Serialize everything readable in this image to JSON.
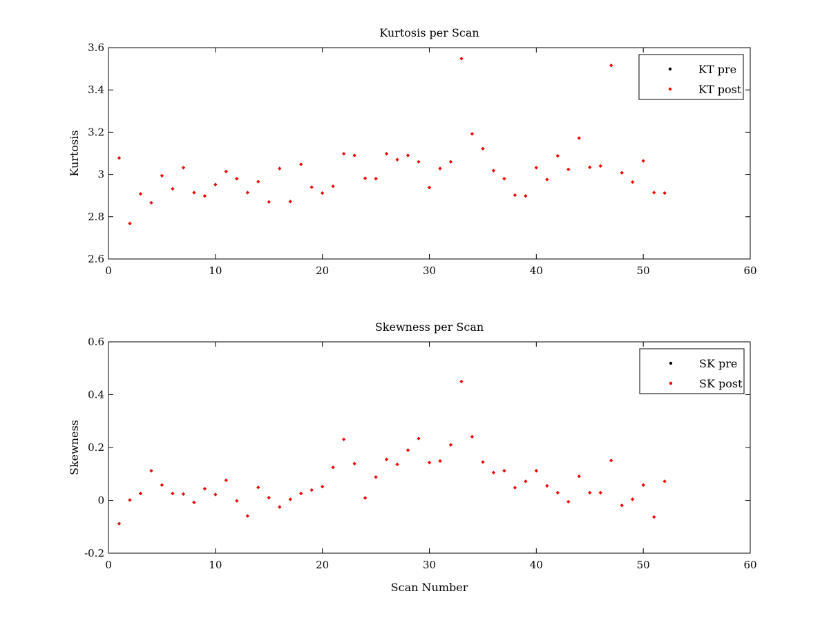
{
  "chart_data": [
    {
      "type": "scatter",
      "title": "Kurtosis per Scan",
      "xlabel": "",
      "ylabel": "Kurtosis",
      "xlim": [
        0,
        60
      ],
      "ylim": [
        2.6,
        3.6
      ],
      "xticks": [
        0,
        10,
        20,
        30,
        40,
        50,
        60
      ],
      "yticks": [
        2.6,
        2.8,
        3,
        3.2,
        3.4,
        3.6
      ],
      "xtick_labels": [
        "0",
        "10",
        "20",
        "30",
        "40",
        "50",
        "60"
      ],
      "ytick_labels": [
        "2.6",
        "2.8",
        "3",
        "3.2",
        "3.4",
        "3.6"
      ],
      "grid": false,
      "legend_position": "top-right",
      "legend": [
        "KT pre",
        "KT post"
      ],
      "series": [
        {
          "name": "KT pre",
          "color": "#000000",
          "x": [
            1,
            2,
            3,
            4,
            5,
            6,
            7,
            8,
            9,
            10,
            11,
            12,
            13,
            14,
            15,
            16,
            17,
            18,
            19,
            20,
            21,
            22,
            23,
            24,
            25,
            26,
            27,
            28,
            29,
            30,
            31,
            32,
            33,
            34,
            35,
            36,
            37,
            38,
            39,
            40,
            41,
            42,
            43,
            44,
            45,
            46,
            47,
            48,
            49,
            50,
            51,
            52
          ],
          "values": [
            3.078,
            2.768,
            2.908,
            2.866,
            2.994,
            2.932,
            3.032,
            2.914,
            2.898,
            2.952,
            3.014,
            2.98,
            2.914,
            2.966,
            2.87,
            3.028,
            2.872,
            3.048,
            2.94,
            2.912,
            2.944,
            3.098,
            3.09,
            2.982,
            2.98,
            3.098,
            3.07,
            3.09,
            3.06,
            2.938,
            3.028,
            3.06,
            3.548,
            3.192,
            3.122,
            3.018,
            2.98,
            2.902,
            2.898,
            3.032,
            2.976,
            3.088,
            3.024,
            3.172,
            3.034,
            3.04,
            3.516,
            3.008,
            2.964,
            3.064,
            2.914,
            2.912
          ]
        },
        {
          "name": "KT post",
          "color": "#ff0000",
          "x": [
            1,
            2,
            3,
            4,
            5,
            6,
            7,
            8,
            9,
            10,
            11,
            12,
            13,
            14,
            15,
            16,
            17,
            18,
            19,
            20,
            21,
            22,
            23,
            24,
            25,
            26,
            27,
            28,
            29,
            30,
            31,
            32,
            33,
            34,
            35,
            36,
            37,
            38,
            39,
            40,
            41,
            42,
            43,
            44,
            45,
            46,
            47,
            48,
            49,
            50,
            51,
            52
          ],
          "values": [
            3.078,
            2.768,
            2.908,
            2.866,
            2.994,
            2.932,
            3.032,
            2.914,
            2.898,
            2.952,
            3.014,
            2.98,
            2.914,
            2.966,
            2.87,
            3.028,
            2.872,
            3.048,
            2.94,
            2.912,
            2.944,
            3.098,
            3.09,
            2.982,
            2.98,
            3.098,
            3.07,
            3.09,
            3.06,
            2.938,
            3.028,
            3.06,
            3.548,
            3.192,
            3.122,
            3.018,
            2.98,
            2.902,
            2.898,
            3.032,
            2.976,
            3.088,
            3.024,
            3.172,
            3.034,
            3.04,
            3.516,
            3.008,
            2.964,
            3.064,
            2.914,
            2.912
          ]
        }
      ]
    },
    {
      "type": "scatter",
      "title": "Skewness per Scan",
      "xlabel": "Scan Number",
      "ylabel": "Skewness",
      "xlim": [
        0,
        60
      ],
      "ylim": [
        -0.2,
        0.6
      ],
      "xticks": [
        0,
        10,
        20,
        30,
        40,
        50,
        60
      ],
      "yticks": [
        -0.2,
        0,
        0.2,
        0.4,
        0.6
      ],
      "xtick_labels": [
        "0",
        "10",
        "20",
        "30",
        "40",
        "50",
        "60"
      ],
      "ytick_labels": [
        "-0.2",
        "0",
        "0.2",
        "0.4",
        "0.6"
      ],
      "grid": false,
      "legend_position": "top-right",
      "legend": [
        "SK pre",
        "SK post"
      ],
      "series": [
        {
          "name": "SK pre",
          "color": "#000000",
          "x": [
            1,
            2,
            3,
            4,
            5,
            6,
            7,
            8,
            9,
            10,
            11,
            12,
            13,
            14,
            15,
            16,
            17,
            18,
            19,
            20,
            21,
            22,
            23,
            24,
            25,
            26,
            27,
            28,
            29,
            30,
            31,
            32,
            33,
            34,
            35,
            36,
            37,
            38,
            39,
            40,
            41,
            42,
            43,
            44,
            45,
            46,
            47,
            48,
            49,
            50,
            51,
            52
          ],
          "values": [
            -0.088,
            0.001,
            0.026,
            0.112,
            0.058,
            0.026,
            0.024,
            -0.008,
            0.044,
            0.022,
            0.076,
            -0.002,
            -0.059,
            0.049,
            0.01,
            -0.025,
            0.004,
            0.026,
            0.039,
            0.052,
            0.125,
            0.231,
            0.139,
            0.009,
            0.088,
            0.155,
            0.136,
            0.19,
            0.234,
            0.143,
            0.149,
            0.21,
            0.45,
            0.241,
            0.145,
            0.105,
            0.112,
            0.048,
            0.072,
            0.112,
            0.055,
            0.029,
            -0.005,
            0.091,
            0.029,
            0.029,
            0.151,
            -0.019,
            0.004,
            0.058,
            -0.063,
            0.072
          ]
        },
        {
          "name": "SK post",
          "color": "#ff0000",
          "x": [
            1,
            2,
            3,
            4,
            5,
            6,
            7,
            8,
            9,
            10,
            11,
            12,
            13,
            14,
            15,
            16,
            17,
            18,
            19,
            20,
            21,
            22,
            23,
            24,
            25,
            26,
            27,
            28,
            29,
            30,
            31,
            32,
            33,
            34,
            35,
            36,
            37,
            38,
            39,
            40,
            41,
            42,
            43,
            44,
            45,
            46,
            47,
            48,
            49,
            50,
            51,
            52
          ],
          "values": [
            -0.088,
            0.001,
            0.026,
            0.112,
            0.058,
            0.026,
            0.024,
            -0.008,
            0.044,
            0.022,
            0.076,
            -0.002,
            -0.059,
            0.049,
            0.01,
            -0.025,
            0.004,
            0.026,
            0.039,
            0.052,
            0.125,
            0.231,
            0.139,
            0.009,
            0.088,
            0.155,
            0.136,
            0.19,
            0.234,
            0.143,
            0.149,
            0.21,
            0.45,
            0.241,
            0.145,
            0.105,
            0.112,
            0.048,
            0.072,
            0.112,
            0.055,
            0.029,
            -0.005,
            0.091,
            0.029,
            0.029,
            0.151,
            -0.019,
            0.004,
            0.058,
            -0.063,
            0.072
          ]
        }
      ]
    }
  ]
}
